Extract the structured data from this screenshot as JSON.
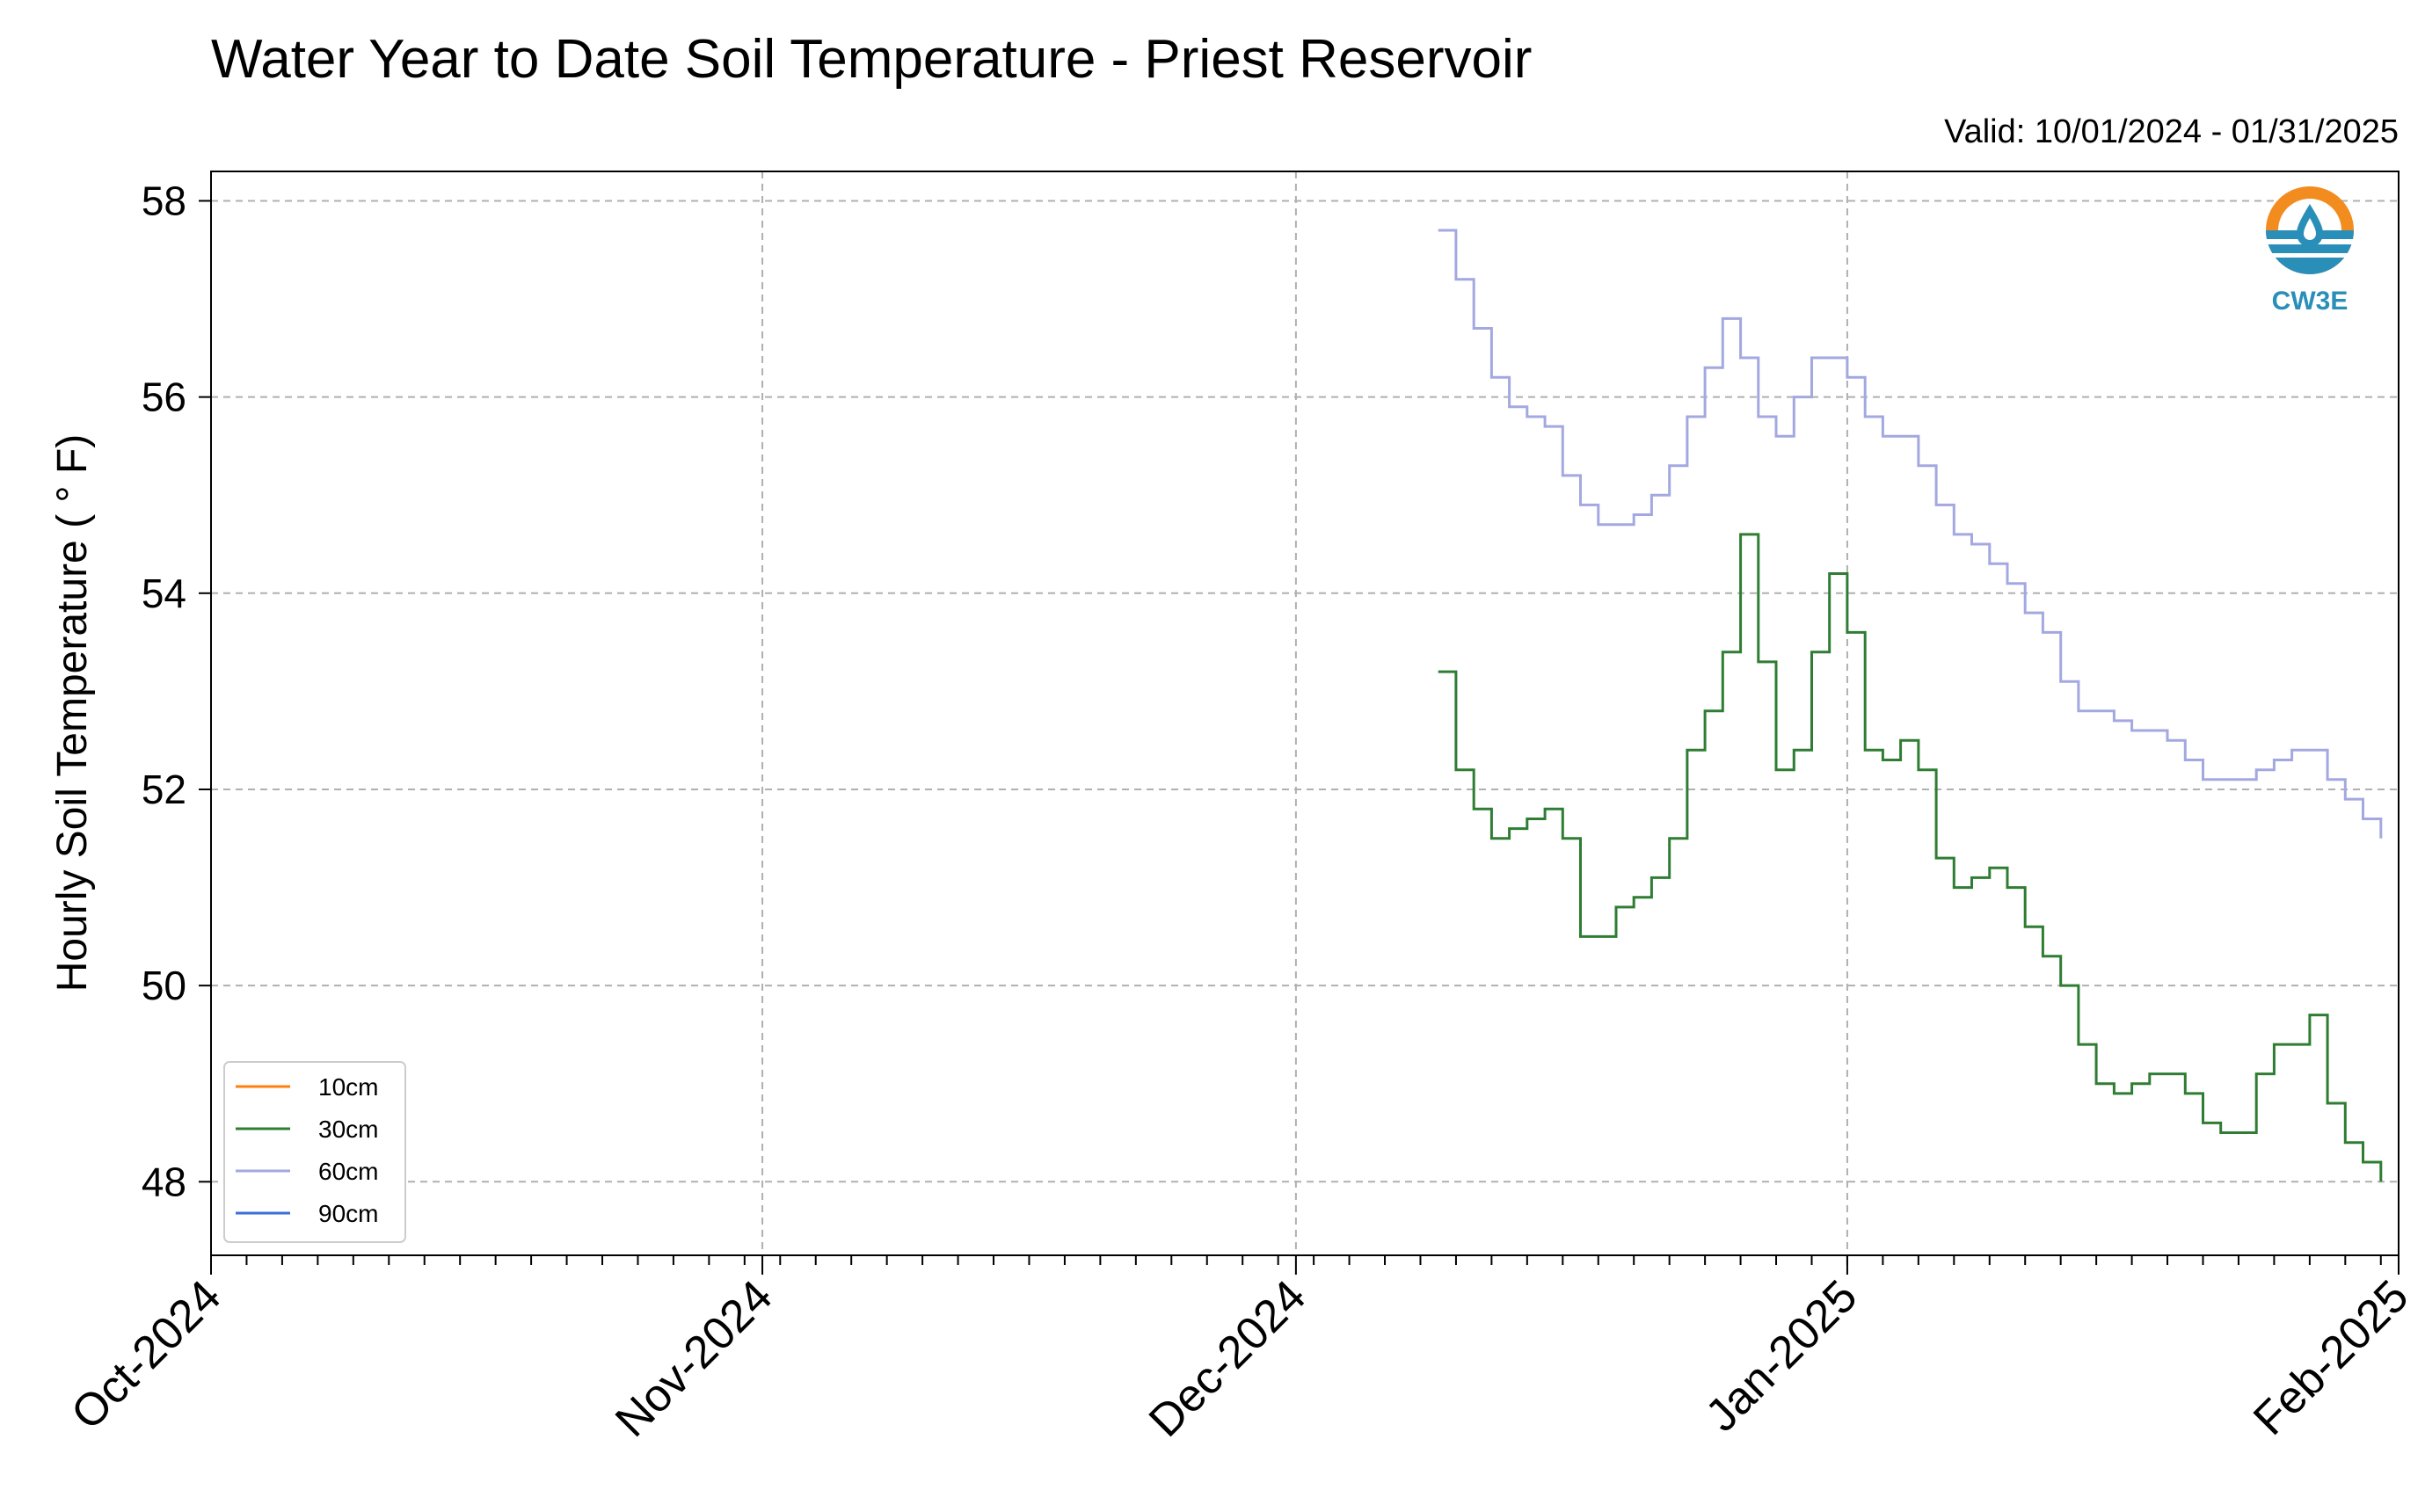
{
  "chart_data": {
    "type": "line",
    "title": "Water Year to Date Soil Temperature - Priest Reservoir",
    "subtitle": "Valid: 10/01/2024 - 01/31/2025",
    "ylabel": "Hourly Soil Temperature ( ° F)",
    "xlabel": "",
    "xlim": [
      "2024-10-01",
      "2025-02-01"
    ],
    "ylim": [
      47.25,
      58.3
    ],
    "yticks": [
      48,
      50,
      52,
      54,
      56,
      58
    ],
    "xticks": [
      {
        "date": "2024-10-01",
        "label": "Oct-2024"
      },
      {
        "date": "2024-11-01",
        "label": "Nov-2024"
      },
      {
        "date": "2024-12-01",
        "label": "Dec-2024"
      },
      {
        "date": "2025-01-01",
        "label": "Jan-2025"
      },
      {
        "date": "2025-02-01",
        "label": "Feb-2025"
      }
    ],
    "grid": true,
    "legend_position": "lower-left",
    "series": [
      {
        "name": "10cm",
        "color": "#ff7f0e",
        "x": [],
        "y": []
      },
      {
        "name": "30cm",
        "color": "#2e7d32",
        "x": [
          "2024-12-09",
          "2024-12-10",
          "2024-12-11",
          "2024-12-12",
          "2024-12-13",
          "2024-12-14",
          "2024-12-15",
          "2024-12-16",
          "2024-12-17",
          "2024-12-18",
          "2024-12-19",
          "2024-12-20",
          "2024-12-21",
          "2024-12-22",
          "2024-12-23",
          "2024-12-24",
          "2024-12-25",
          "2024-12-26",
          "2024-12-27",
          "2024-12-28",
          "2024-12-29",
          "2024-12-30",
          "2024-12-31",
          "2025-01-01",
          "2025-01-02",
          "2025-01-03",
          "2025-01-04",
          "2025-01-05",
          "2025-01-06",
          "2025-01-07",
          "2025-01-08",
          "2025-01-09",
          "2025-01-10",
          "2025-01-11",
          "2025-01-12",
          "2025-01-13",
          "2025-01-14",
          "2025-01-15",
          "2025-01-16",
          "2025-01-17",
          "2025-01-18",
          "2025-01-19",
          "2025-01-20",
          "2025-01-21",
          "2025-01-22",
          "2025-01-23",
          "2025-01-24",
          "2025-01-25",
          "2025-01-26",
          "2025-01-27",
          "2025-01-28",
          "2025-01-29",
          "2025-01-30",
          "2025-01-31"
        ],
        "y": [
          53.2,
          52.2,
          51.8,
          51.5,
          51.6,
          51.7,
          51.8,
          51.5,
          50.5,
          50.5,
          50.8,
          50.9,
          51.1,
          51.5,
          52.4,
          52.8,
          53.4,
          54.6,
          53.3,
          52.2,
          52.4,
          53.4,
          54.2,
          53.6,
          52.4,
          52.3,
          52.5,
          52.2,
          51.3,
          51.0,
          51.1,
          51.2,
          51.0,
          50.6,
          50.3,
          50.0,
          49.4,
          49.0,
          48.9,
          49.0,
          49.1,
          49.1,
          48.9,
          48.6,
          48.5,
          48.5,
          49.1,
          49.4,
          49.4,
          49.7,
          48.8,
          48.4,
          48.2,
          48.0
        ]
      },
      {
        "name": "60cm",
        "color": "#a3a8e0",
        "x": [
          "2024-12-09",
          "2024-12-10",
          "2024-12-11",
          "2024-12-12",
          "2024-12-13",
          "2024-12-14",
          "2024-12-15",
          "2024-12-16",
          "2024-12-17",
          "2024-12-18",
          "2024-12-19",
          "2024-12-20",
          "2024-12-21",
          "2024-12-22",
          "2024-12-23",
          "2024-12-24",
          "2024-12-25",
          "2024-12-26",
          "2024-12-27",
          "2024-12-28",
          "2024-12-29",
          "2024-12-30",
          "2024-12-31",
          "2025-01-01",
          "2025-01-02",
          "2025-01-03",
          "2025-01-04",
          "2025-01-05",
          "2025-01-06",
          "2025-01-07",
          "2025-01-08",
          "2025-01-09",
          "2025-01-10",
          "2025-01-11",
          "2025-01-12",
          "2025-01-13",
          "2025-01-14",
          "2025-01-15",
          "2025-01-16",
          "2025-01-17",
          "2025-01-18",
          "2025-01-19",
          "2025-01-20",
          "2025-01-21",
          "2025-01-22",
          "2025-01-23",
          "2025-01-24",
          "2025-01-25",
          "2025-01-26",
          "2025-01-27",
          "2025-01-28",
          "2025-01-29",
          "2025-01-30",
          "2025-01-31"
        ],
        "y": [
          57.7,
          57.2,
          56.7,
          56.2,
          55.9,
          55.8,
          55.7,
          55.2,
          54.9,
          54.7,
          54.7,
          54.8,
          55.0,
          55.3,
          55.8,
          56.3,
          56.8,
          56.4,
          55.8,
          55.6,
          56.0,
          56.4,
          56.4,
          56.2,
          55.8,
          55.6,
          55.6,
          55.3,
          54.9,
          54.6,
          54.5,
          54.3,
          54.1,
          53.8,
          53.6,
          53.1,
          52.8,
          52.8,
          52.7,
          52.6,
          52.6,
          52.5,
          52.3,
          52.1,
          52.1,
          52.1,
          52.2,
          52.3,
          52.4,
          52.4,
          52.1,
          51.9,
          51.7,
          51.5
        ]
      },
      {
        "name": "90cm",
        "color": "#3a6fd8",
        "x": [],
        "y": []
      }
    ]
  },
  "logo": {
    "text": "CW3E",
    "icon": "water-drop-logo-icon"
  }
}
